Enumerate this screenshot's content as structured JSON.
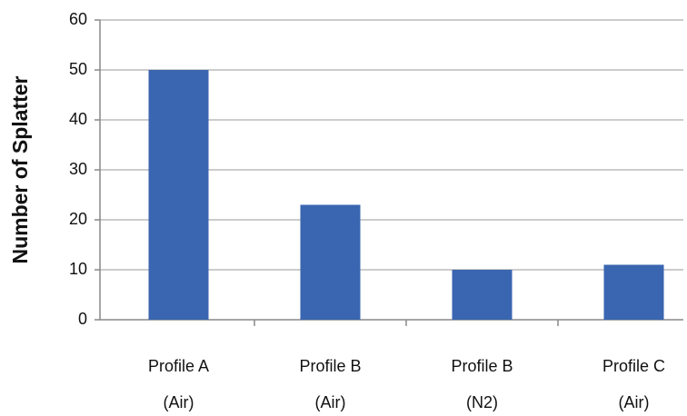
{
  "chart_data": {
    "type": "bar",
    "y_label": "Number of Splatter",
    "categories": [
      [
        "Profile A",
        "(Air)"
      ],
      [
        "Profile B",
        "(Air)"
      ],
      [
        "Profile B",
        "(N2)"
      ],
      [
        "Profile C",
        "(Air)"
      ]
    ],
    "values": [
      50,
      23,
      10,
      11
    ],
    "color": "#3a65b0",
    "ylim": [
      0,
      60
    ],
    "yticks": [
      0,
      10,
      20,
      30,
      40,
      50,
      60
    ],
    "grid": true
  }
}
